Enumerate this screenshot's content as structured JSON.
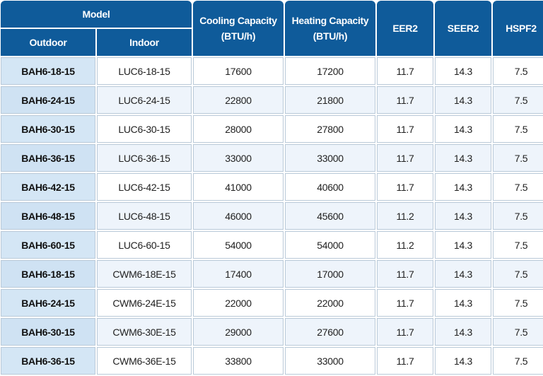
{
  "headers": {
    "model": "Model",
    "outdoor": "Outdoor",
    "indoor": "Indoor",
    "cooling_line1": "Cooling Capacity",
    "cooling_line2": "(BTU/h)",
    "heating_line1": "Heating Capacity",
    "heating_line2": "(BTU/h)",
    "eer2": "EER2",
    "seer2": "SEER2",
    "hspf2": "HSPF2"
  },
  "rows": [
    {
      "outdoor": "BAH6-18-15",
      "indoor": "LUC6-18-15",
      "cooling": "17600",
      "heating": "17200",
      "eer2": "11.7",
      "seer2": "14.3",
      "hspf2": "7.5"
    },
    {
      "outdoor": "BAH6-24-15",
      "indoor": "LUC6-24-15",
      "cooling": "22800",
      "heating": "21800",
      "eer2": "11.7",
      "seer2": "14.3",
      "hspf2": "7.5"
    },
    {
      "outdoor": "BAH6-30-15",
      "indoor": "LUC6-30-15",
      "cooling": "28000",
      "heating": "27800",
      "eer2": "11.7",
      "seer2": "14.3",
      "hspf2": "7.5"
    },
    {
      "outdoor": "BAH6-36-15",
      "indoor": "LUC6-36-15",
      "cooling": "33000",
      "heating": "33000",
      "eer2": "11.7",
      "seer2": "14.3",
      "hspf2": "7.5"
    },
    {
      "outdoor": "BAH6-42-15",
      "indoor": "LUC6-42-15",
      "cooling": "41000",
      "heating": "40600",
      "eer2": "11.7",
      "seer2": "14.3",
      "hspf2": "7.5"
    },
    {
      "outdoor": "BAH6-48-15",
      "indoor": "LUC6-48-15",
      "cooling": "46000",
      "heating": "45600",
      "eer2": "11.2",
      "seer2": "14.3",
      "hspf2": "7.5"
    },
    {
      "outdoor": "BAH6-60-15",
      "indoor": "LUC6-60-15",
      "cooling": "54000",
      "heating": "54000",
      "eer2": "11.2",
      "seer2": "14.3",
      "hspf2": "7.5"
    },
    {
      "outdoor": "BAH6-18-15",
      "indoor": "CWM6-18E-15",
      "cooling": "17400",
      "heating": "17000",
      "eer2": "11.7",
      "seer2": "14.3",
      "hspf2": "7.5"
    },
    {
      "outdoor": "BAH6-24-15",
      "indoor": "CWM6-24E-15",
      "cooling": "22000",
      "heating": "22000",
      "eer2": "11.7",
      "seer2": "14.3",
      "hspf2": "7.5"
    },
    {
      "outdoor": "BAH6-30-15",
      "indoor": "CWM6-30E-15",
      "cooling": "29000",
      "heating": "27600",
      "eer2": "11.7",
      "seer2": "14.3",
      "hspf2": "7.5"
    },
    {
      "outdoor": "BAH6-36-15",
      "indoor": "CWM6-36E-15",
      "cooling": "33800",
      "heating": "33000",
      "eer2": "11.7",
      "seer2": "14.3",
      "hspf2": "7.5"
    }
  ],
  "colors": {
    "header_bg": "#0f5b9a",
    "header_text": "#ffffff",
    "outdoor_cell_bg": "#d4e6f5",
    "row_alt_bg": "#eef4fb",
    "border": "#b9c9d8"
  }
}
